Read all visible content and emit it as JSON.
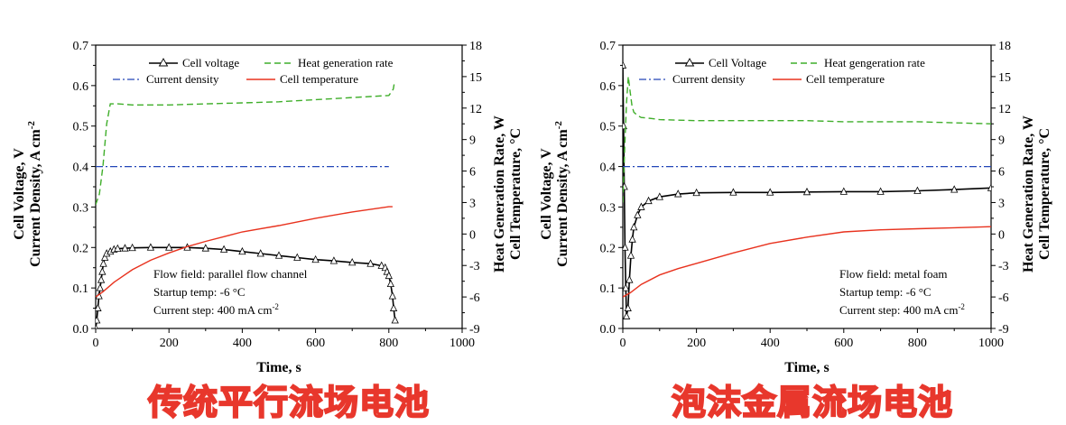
{
  "chart_data": [
    {
      "type": "line",
      "xlabel": "Time, s",
      "ylabel_left": [
        "Cell Voltage, V",
        "Current Density, A cm"
      ],
      "ylabel_left_sup": "-2",
      "ylabel_right": [
        "Heat Generation Rate, W",
        "Cell Temperature, °C"
      ],
      "xlim": [
        0,
        1000
      ],
      "xticks": [
        "0",
        "200",
        "400",
        "600",
        "800",
        "1000"
      ],
      "ylim_left": [
        0,
        0.7
      ],
      "yticks_left": [
        "0.0",
        "0.1",
        "0.2",
        "0.3",
        "0.4",
        "0.5",
        "0.6",
        "0.7"
      ],
      "ylim_right": [
        -9,
        18
      ],
      "yticks_right": [
        "-9",
        "-6",
        "-3",
        "0",
        "3",
        "6",
        "9",
        "12",
        "15",
        "18"
      ],
      "legend": [
        {
          "label": "Cell voltage",
          "color": "#000000",
          "style": "line-triangle"
        },
        {
          "label": "Heat generation rate",
          "color": "#3fae2a",
          "style": "dashed"
        },
        {
          "label": "Current density",
          "color": "#2346b8",
          "style": "dashdot"
        },
        {
          "label": "Cell temperature",
          "color": "#e8321e",
          "style": "solid"
        }
      ],
      "annotations": [
        "Flow field: parallel flow channel",
        "Startup temp: -6 °C",
        "Current step: 400 mA cm"
      ],
      "annotation_sup": "-2",
      "series": [
        {
          "name": "Cell voltage",
          "axis": "left",
          "x": [
            0,
            3,
            6,
            9,
            12,
            15,
            18,
            21,
            25,
            30,
            40,
            50,
            60,
            80,
            100,
            150,
            200,
            250,
            300,
            350,
            400,
            450,
            500,
            550,
            600,
            650,
            700,
            750,
            780,
            790,
            795,
            800,
            805,
            810,
            813,
            817
          ],
          "y": [
            0.0,
            0.02,
            0.05,
            0.08,
            0.1,
            0.12,
            0.14,
            0.16,
            0.175,
            0.185,
            0.19,
            0.195,
            0.197,
            0.198,
            0.199,
            0.2,
            0.2,
            0.2,
            0.198,
            0.195,
            0.19,
            0.185,
            0.18,
            0.175,
            0.17,
            0.167,
            0.163,
            0.16,
            0.155,
            0.15,
            0.14,
            0.13,
            0.11,
            0.08,
            0.05,
            0.02
          ]
        },
        {
          "name": "Heat generation rate",
          "axis": "right",
          "x": [
            0,
            10,
            20,
            30,
            40,
            60,
            100,
            200,
            300,
            400,
            500,
            600,
            700,
            800,
            812,
            816
          ],
          "y": [
            2.8,
            3.8,
            6.5,
            10.5,
            12.4,
            12.4,
            12.3,
            12.3,
            12.4,
            12.5,
            12.6,
            12.8,
            13.0,
            13.2,
            13.8,
            14.6
          ]
        },
        {
          "name": "Current density",
          "axis": "left",
          "x": [
            0,
            800
          ],
          "y": [
            0.4,
            0.4
          ]
        },
        {
          "name": "Cell temperature",
          "axis": "right",
          "x": [
            0,
            20,
            50,
            100,
            150,
            200,
            250,
            300,
            400,
            500,
            600,
            700,
            800,
            810
          ],
          "y": [
            -6.0,
            -5.5,
            -4.6,
            -3.4,
            -2.5,
            -1.8,
            -1.2,
            -0.7,
            0.2,
            0.8,
            1.5,
            2.1,
            2.6,
            2.6
          ]
        }
      ]
    },
    {
      "type": "line",
      "xlabel": "Time, s",
      "ylabel_left": [
        "Cell Voltage, V",
        "Current Density, A cm"
      ],
      "ylabel_left_sup": "-2",
      "ylabel_right": [
        "Heat Generation Rate, W",
        "Cell Temperature, °C"
      ],
      "xlim": [
        0,
        1000
      ],
      "xticks": [
        "0",
        "200",
        "400",
        "600",
        "800",
        "1000"
      ],
      "ylim_left": [
        0,
        0.7
      ],
      "yticks_left": [
        "0.0",
        "0.1",
        "0.2",
        "0.3",
        "0.4",
        "0.5",
        "0.6",
        "0.7"
      ],
      "ylim_right": [
        -9,
        18
      ],
      "yticks_right": [
        "-9",
        "-6",
        "-3",
        "0",
        "3",
        "6",
        "9",
        "12",
        "15",
        "18"
      ],
      "legend": [
        {
          "label": "Cell Voltage",
          "color": "#000000",
          "style": "line-triangle"
        },
        {
          "label": "Heat gengeration rate",
          "color": "#3fae2a",
          "style": "dashed"
        },
        {
          "label": "Current density",
          "color": "#2346b8",
          "style": "dashdot"
        },
        {
          "label": "Cell temperature",
          "color": "#e8321e",
          "style": "solid"
        }
      ],
      "annotations": [
        "Flow field: metal foam",
        "Startup temp: -6 °C",
        "Current step: 400 mA cm"
      ],
      "annotation_sup": "-2",
      "series": [
        {
          "name": "Cell Voltage",
          "axis": "left",
          "x": [
            0,
            2,
            4,
            6,
            8,
            10,
            14,
            18,
            22,
            26,
            30,
            40,
            50,
            70,
            100,
            150,
            200,
            300,
            400,
            500,
            600,
            700,
            800,
            900,
            1000
          ],
          "y": [
            0.65,
            0.5,
            0.35,
            0.2,
            0.1,
            0.03,
            0.05,
            0.12,
            0.18,
            0.22,
            0.25,
            0.28,
            0.3,
            0.315,
            0.325,
            0.332,
            0.335,
            0.336,
            0.336,
            0.337,
            0.338,
            0.338,
            0.34,
            0.343,
            0.347
          ]
        },
        {
          "name": "Heat gengeration rate",
          "axis": "right",
          "x": [
            0,
            5,
            10,
            15,
            20,
            25,
            30,
            40,
            50,
            80,
            100,
            200,
            300,
            400,
            500,
            600,
            700,
            800,
            900,
            1000
          ],
          "y": [
            3.0,
            8.0,
            12.5,
            15.0,
            13.5,
            12.2,
            11.6,
            11.3,
            11.1,
            11.0,
            10.9,
            10.8,
            10.8,
            10.8,
            10.8,
            10.7,
            10.7,
            10.7,
            10.6,
            10.5
          ]
        },
        {
          "name": "Current density",
          "axis": "left",
          "x": [
            0,
            1000
          ],
          "y": [
            0.4,
            0.4
          ]
        },
        {
          "name": "Cell temperature",
          "axis": "right",
          "x": [
            0,
            20,
            50,
            100,
            150,
            200,
            300,
            400,
            500,
            600,
            700,
            800,
            900,
            1000
          ],
          "y": [
            -6.0,
            -5.6,
            -4.8,
            -3.9,
            -3.3,
            -2.8,
            -1.8,
            -0.9,
            -0.3,
            0.2,
            0.4,
            0.5,
            0.6,
            0.7
          ]
        }
      ]
    }
  ],
  "captions": [
    "传统平行流场电池",
    "泡沫金属流场电池"
  ]
}
